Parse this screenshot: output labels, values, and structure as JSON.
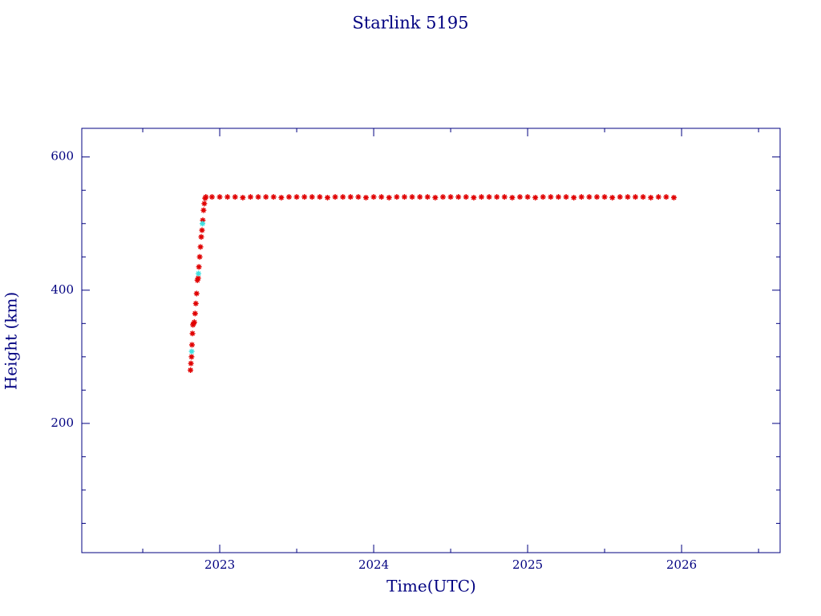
{
  "chart_data": {
    "type": "scatter",
    "title": "Starlink 5195",
    "x_label": "Time(UTC)",
    "y_label": "Height (km)",
    "xlim": [
      2022.104,
      2026.64
    ],
    "ylim": [
      6,
      643
    ],
    "xticks": [
      2023,
      2024,
      2025,
      2026
    ],
    "xticks_minor": [
      2022.5,
      2023.5,
      2024.5,
      2025.5,
      2026.5
    ],
    "yticks": [
      200,
      400,
      600
    ],
    "yticks_minor": [
      50,
      100,
      150,
      250,
      300,
      350,
      450,
      500,
      550
    ],
    "series": [
      {
        "color": "#e00000",
        "x": [
          2022.81,
          2022.813,
          2022.817,
          2022.82,
          2022.823,
          2022.826,
          2022.83,
          2022.835,
          2022.84,
          2022.845,
          2022.85,
          2022.855,
          2022.86,
          2022.865,
          2022.87,
          2022.875,
          2022.88,
          2022.885,
          2022.89,
          2022.895,
          2022.9,
          2022.905,
          2022.91,
          2022.95,
          2023.0,
          2023.05,
          2023.1,
          2023.15,
          2023.2,
          2023.25,
          2023.3,
          2023.35,
          2023.4,
          2023.45,
          2023.5,
          2023.55,
          2023.6,
          2023.65,
          2023.7,
          2023.75,
          2023.8,
          2023.85,
          2023.9,
          2023.95,
          2024.0,
          2024.05,
          2024.1,
          2024.15,
          2024.2,
          2024.25,
          2024.3,
          2024.35,
          2024.4,
          2024.45,
          2024.5,
          2024.55,
          2024.6,
          2024.65,
          2024.7,
          2024.75,
          2024.8,
          2024.85,
          2024.9,
          2024.95,
          2025.0,
          2025.05,
          2025.1,
          2025.15,
          2025.2,
          2025.25,
          2025.3,
          2025.35,
          2025.4,
          2025.45,
          2025.5,
          2025.55,
          2025.6,
          2025.65,
          2025.7,
          2025.75,
          2025.8,
          2025.85,
          2025.9,
          2025.95
        ],
        "values": [
          280,
          290,
          300,
          318,
          335,
          348,
          350,
          352,
          365,
          380,
          395,
          415,
          418,
          435,
          450,
          465,
          480,
          490,
          505,
          520,
          530,
          538,
          540,
          540,
          540,
          540,
          540,
          539,
          540,
          540,
          540,
          540,
          539,
          540,
          540,
          540,
          540,
          540,
          539,
          540,
          540,
          540,
          540,
          539,
          540,
          540,
          539,
          540,
          540,
          540,
          540,
          540,
          539,
          540,
          540,
          540,
          540,
          539,
          540,
          540,
          540,
          540,
          539,
          540,
          540,
          539,
          540,
          540,
          540,
          540,
          539,
          540,
          540,
          540,
          540,
          539,
          540,
          540,
          540,
          540,
          539,
          540,
          540,
          539
        ]
      },
      {
        "color": "#40e0e0",
        "x": [
          2022.818,
          2022.862,
          2022.888
        ],
        "values": [
          308,
          425,
          500
        ]
      }
    ]
  }
}
